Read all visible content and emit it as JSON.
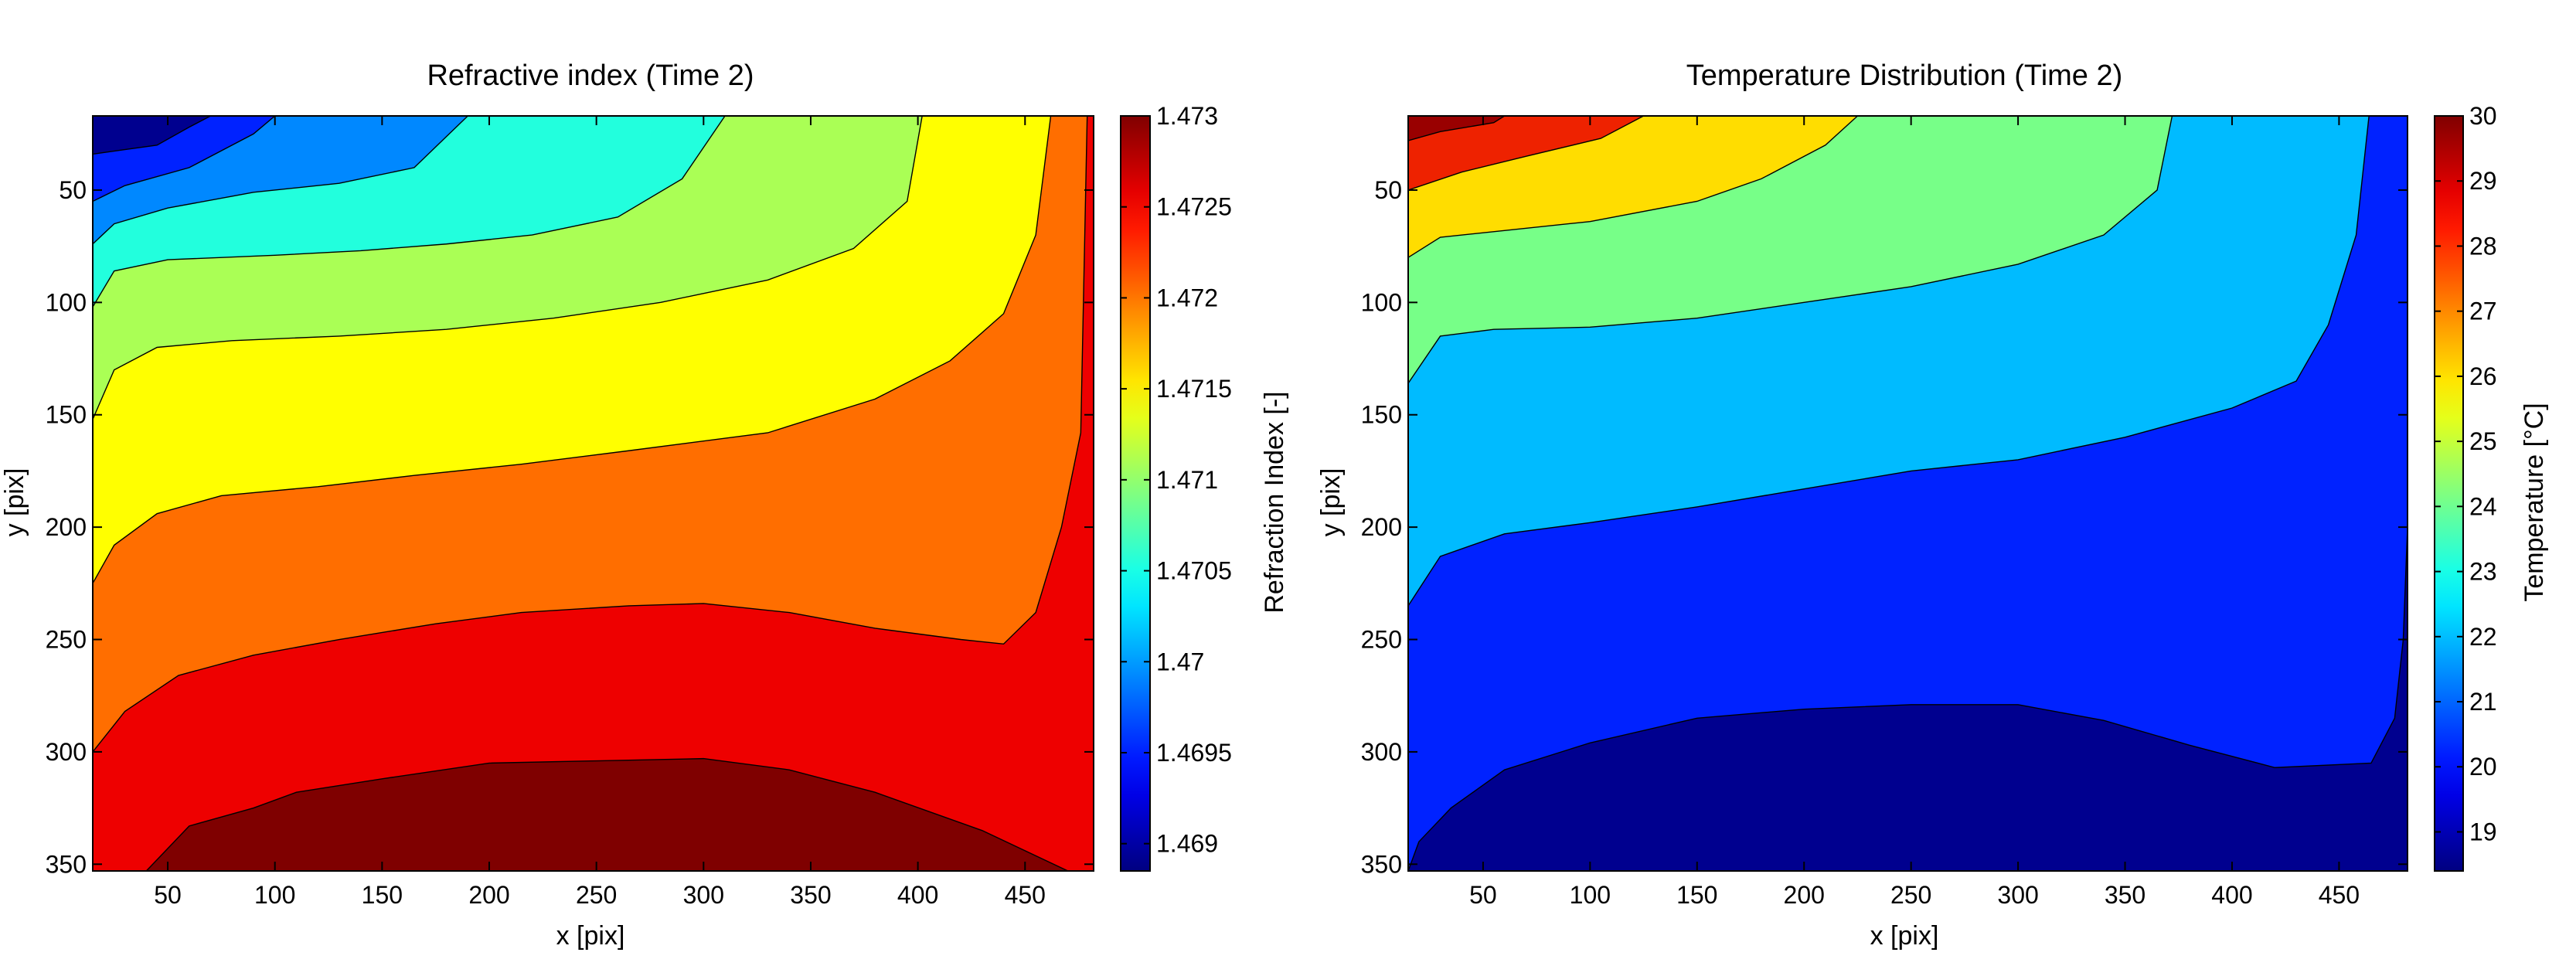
{
  "chart_data": [
    {
      "type": "contour",
      "title": "Refractive index (Time 2)",
      "xlabel": "x [pix]",
      "ylabel": "y [pix]",
      "colorbar_label": "Refraction Index [-]",
      "colormap": "jet",
      "xlim": [
        15,
        482
      ],
      "ylim": [
        17,
        353
      ],
      "y_reversed": true,
      "xticks": [
        50,
        100,
        150,
        200,
        250,
        300,
        350,
        400,
        450
      ],
      "yticks": [
        50,
        100,
        150,
        200,
        250,
        300,
        350
      ],
      "colorbar_range": [
        1.46885,
        1.473
      ],
      "colorbar_ticks": [
        "1.469",
        "1.4695",
        "1.47",
        "1.4705",
        "1.471",
        "1.4715",
        "1.472",
        "1.4725",
        "1.473"
      ],
      "colorbar_tick_values": [
        1.469,
        1.4695,
        1.47,
        1.4705,
        1.471,
        1.4715,
        1.472,
        1.4725,
        1.473
      ],
      "levels": [
        {
          "color": "#7f0000",
          "x": [
            15,
            482
          ],
          "boundary_top": [
            [
              15,
              353
            ],
            [
              482,
              353
            ]
          ]
        },
        {
          "color": "#ee0000",
          "boundary_top": [
            [
              40,
              353
            ],
            [
              60,
              333
            ],
            [
              90,
              325
            ],
            [
              110,
              318
            ],
            [
              150,
              312
            ],
            [
              200,
              305
            ],
            [
              250,
              304
            ],
            [
              300,
              303
            ],
            [
              340,
              308
            ],
            [
              380,
              318
            ],
            [
              430,
              335
            ],
            [
              470,
              353
            ]
          ]
        },
        {
          "color": "#ff6e00",
          "boundary_top": [
            [
              15,
              300
            ],
            [
              30,
              282
            ],
            [
              55,
              266
            ],
            [
              90,
              257
            ],
            [
              130,
              250
            ],
            [
              175,
              243
            ],
            [
              215,
              238
            ],
            [
              265,
              235
            ],
            [
              300,
              234
            ],
            [
              340,
              238
            ],
            [
              380,
              245
            ],
            [
              420,
              250
            ],
            [
              440,
              252
            ],
            [
              455,
              238
            ],
            [
              467,
              200
            ],
            [
              476,
              158
            ],
            [
              479,
              17
            ]
          ]
        },
        {
          "color": "#ffff00",
          "boundary_top": [
            [
              15,
              225
            ],
            [
              25,
              208
            ],
            [
              45,
              194
            ],
            [
              75,
              186
            ],
            [
              120,
              182
            ],
            [
              165,
              177
            ],
            [
              215,
              172
            ],
            [
              265,
              166
            ],
            [
              330,
              158
            ],
            [
              380,
              143
            ],
            [
              415,
              126
            ],
            [
              440,
              105
            ],
            [
              455,
              70
            ],
            [
              462,
              17
            ]
          ]
        },
        {
          "color": "#aaff55",
          "boundary_top": [
            [
              15,
              152
            ],
            [
              25,
              130
            ],
            [
              45,
              120
            ],
            [
              80,
              117
            ],
            [
              130,
              115
            ],
            [
              180,
              112
            ],
            [
              230,
              107
            ],
            [
              280,
              100
            ],
            [
              330,
              90
            ],
            [
              370,
              76
            ],
            [
              395,
              55
            ],
            [
              402,
              17
            ]
          ]
        },
        {
          "color": "#22ffdd",
          "boundary_top": [
            [
              15,
              102
            ],
            [
              25,
              86
            ],
            [
              50,
              81
            ],
            [
              100,
              79
            ],
            [
              140,
              77
            ],
            [
              180,
              74
            ],
            [
              220,
              70
            ],
            [
              260,
              62
            ],
            [
              290,
              45
            ],
            [
              310,
              17
            ]
          ]
        },
        {
          "color": "#0088ff",
          "boundary_top": [
            [
              15,
              74
            ],
            [
              25,
              65
            ],
            [
              50,
              58
            ],
            [
              90,
              51
            ],
            [
              130,
              47
            ],
            [
              165,
              40
            ],
            [
              190,
              17
            ]
          ]
        },
        {
          "color": "#0022ff",
          "boundary_top": [
            [
              15,
              55
            ],
            [
              30,
              48
            ],
            [
              60,
              40
            ],
            [
              90,
              25
            ],
            [
              100,
              17
            ]
          ]
        },
        {
          "color": "#00008f",
          "boundary_top": [
            [
              15,
              34
            ],
            [
              30,
              32
            ],
            [
              45,
              30
            ],
            [
              60,
              22
            ],
            [
              70,
              17
            ]
          ]
        }
      ]
    },
    {
      "type": "contour",
      "title": "Temperature Distribution (Time 2)",
      "xlabel": "x [pix]",
      "ylabel": "y [pix]",
      "colorbar_label": "Temperature [°C]",
      "colormap": "jet",
      "xlim": [
        15,
        482
      ],
      "ylim": [
        17,
        353
      ],
      "y_reversed": true,
      "xticks": [
        50,
        100,
        150,
        200,
        250,
        300,
        350,
        400,
        450
      ],
      "yticks": [
        50,
        100,
        150,
        200,
        250,
        300,
        350
      ],
      "colorbar_range": [
        18.4,
        30
      ],
      "colorbar_ticks": [
        "19",
        "20",
        "21",
        "22",
        "23",
        "24",
        "25",
        "26",
        "27",
        "28",
        "29",
        "30"
      ],
      "colorbar_tick_values": [
        19,
        20,
        21,
        22,
        23,
        24,
        25,
        26,
        27,
        28,
        29,
        30
      ],
      "levels": [
        {
          "color": "#00008f",
          "boundary_top": [
            [
              15,
              353
            ],
            [
              482,
              353
            ]
          ]
        },
        {
          "color": "#0022ff",
          "boundary_top": [
            [
              15,
              353
            ],
            [
              20,
              340
            ],
            [
              35,
              325
            ],
            [
              60,
              308
            ],
            [
              100,
              296
            ],
            [
              150,
              285
            ],
            [
              200,
              281
            ],
            [
              250,
              279
            ],
            [
              300,
              279
            ],
            [
              340,
              286
            ],
            [
              380,
              297
            ],
            [
              420,
              307
            ],
            [
              465,
              305
            ],
            [
              476,
              285
            ],
            [
              480,
              250
            ],
            [
              482,
              200
            ]
          ]
        },
        {
          "color": "#00bbff",
          "boundary_top": [
            [
              15,
              235
            ],
            [
              30,
              213
            ],
            [
              60,
              203
            ],
            [
              100,
              198
            ],
            [
              150,
              191
            ],
            [
              200,
              183
            ],
            [
              250,
              175
            ],
            [
              300,
              170
            ],
            [
              350,
              160
            ],
            [
              400,
              147
            ],
            [
              430,
              135
            ],
            [
              445,
              110
            ],
            [
              458,
              70
            ],
            [
              464,
              17
            ]
          ]
        },
        {
          "color": "#77ff88",
          "boundary_top": [
            [
              15,
              136
            ],
            [
              30,
              115
            ],
            [
              55,
              112
            ],
            [
              100,
              111
            ],
            [
              150,
              107
            ],
            [
              200,
              100
            ],
            [
              250,
              93
            ],
            [
              300,
              83
            ],
            [
              340,
              70
            ],
            [
              365,
              50
            ],
            [
              372,
              17
            ]
          ]
        },
        {
          "color": "#ffdd00",
          "boundary_top": [
            [
              15,
              80
            ],
            [
              30,
              71
            ],
            [
              60,
              68
            ],
            [
              100,
              64
            ],
            [
              150,
              55
            ],
            [
              180,
              45
            ],
            [
              210,
              30
            ],
            [
              225,
              17
            ]
          ]
        },
        {
          "color": "#ee2200",
          "boundary_top": [
            [
              15,
              50
            ],
            [
              40,
              42
            ],
            [
              70,
              35
            ],
            [
              105,
              27
            ],
            [
              125,
              17
            ]
          ]
        },
        {
          "color": "#990000",
          "boundary_top": [
            [
              15,
              28
            ],
            [
              30,
              24
            ],
            [
              55,
              20
            ],
            [
              60,
              17
            ]
          ]
        }
      ]
    }
  ]
}
